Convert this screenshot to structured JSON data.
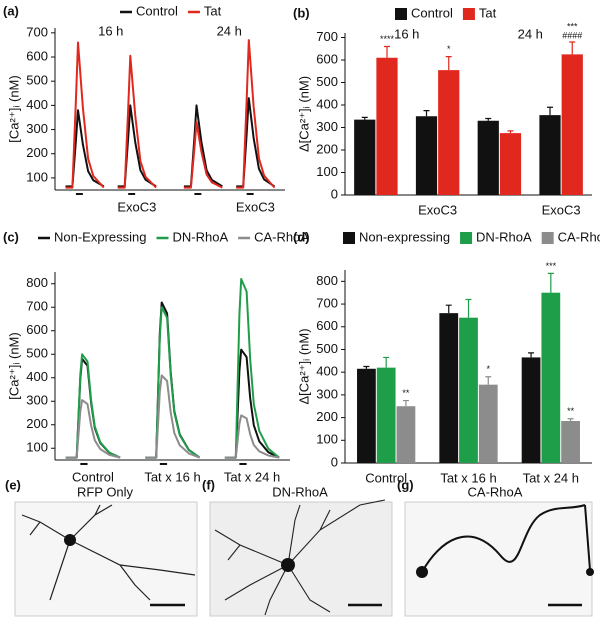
{
  "chart_data": [
    {
      "type": "line",
      "panel": "(a)",
      "ylabel": "[Ca²⁺]ᵢ (nM)",
      "x": [
        0,
        2,
        3,
        3.6,
        5,
        6.5,
        8,
        11,
        13,
        15,
        17,
        18,
        18.6,
        20,
        21.5,
        23,
        26,
        28,
        34,
        36,
        37,
        37.6,
        39,
        40.5,
        42,
        45,
        47,
        49,
        51,
        52,
        52.6,
        54,
        55.5,
        57,
        60
      ],
      "xlim": [
        -3,
        63
      ],
      "series": [
        {
          "name": "Control",
          "color": "#111111",
          "values": [
            65,
            65,
            254,
            380,
            238,
            128,
            90,
            65,
            null,
            65,
            65,
            266,
            400,
            249,
            132,
            92,
            65,
            null,
            65,
            65,
            266,
            400,
            249,
            132,
            92,
            65,
            null,
            65,
            65,
            284,
            430,
            266,
            138,
            94,
            65
          ]
        },
        {
          "name": "Tat",
          "color": "#e0281e",
          "values": [
            60,
            60,
            420,
            660,
            390,
            180,
            108,
            60,
            null,
            60,
            60,
            387,
            605,
            360,
            169,
            104,
            60,
            null,
            60,
            60,
            222,
            330,
            209,
            114,
            82,
            60,
            null,
            60,
            60,
            426,
            670,
            396,
            182,
            109,
            60
          ]
        }
      ],
      "trace_labels": [
        null,
        "ExoC3",
        null,
        "ExoC3"
      ],
      "group_labels": [
        "16 h",
        "24 h"
      ],
      "ylim": [
        50,
        720
      ],
      "yticks": [
        100,
        200,
        300,
        400,
        500,
        600,
        700
      ]
    },
    {
      "type": "bar",
      "panel": "(b)",
      "ylabel": "Δ[Ca²⁺]ᵢ (nM)",
      "categories": [
        null,
        "ExoC3",
        null,
        "ExoC3"
      ],
      "group_labels": [
        "16 h",
        "24 h"
      ],
      "series": [
        {
          "name": "Control",
          "color": "#111111",
          "values": [
            335,
            350,
            330,
            355
          ],
          "errors": [
            10,
            25,
            10,
            35
          ]
        },
        {
          "name": "Tat",
          "color": "#e0281e",
          "values": [
            610,
            555,
            275,
            625
          ],
          "errors": [
            50,
            60,
            10,
            55
          ],
          "sig": [
            "****",
            "*",
            null,
            "***"
          ],
          "sig_extra": [
            null,
            null,
            null,
            "####"
          ]
        }
      ],
      "ylim": [
        0,
        720
      ],
      "yticks": [
        0,
        100,
        200,
        300,
        400,
        500,
        600,
        700
      ]
    },
    {
      "type": "line",
      "panel": "(c)",
      "ylabel": "[Ca²⁺]ᵢ (nM)",
      "x": [
        0,
        3,
        4,
        4.5,
        6,
        7,
        8,
        9.5,
        12,
        15,
        18,
        22,
        25,
        26,
        26.5,
        28,
        29,
        30,
        31.5,
        34,
        37,
        40,
        44,
        47,
        48,
        48.5,
        50,
        51,
        52,
        53.5,
        56,
        59
      ],
      "xlim": [
        -3,
        62
      ],
      "series": [
        {
          "name": "Non-Expressing",
          "color": "#111111",
          "values": [
            60,
            60,
            396,
            480,
            451,
            291,
            186,
            123,
            81,
            60,
            null,
            60,
            60,
            588,
            720,
            674,
            423,
            258,
            159,
            93,
            60,
            null,
            60,
            60,
            428,
            520,
            488,
            313,
            198,
            129,
            83,
            60
          ]
        },
        {
          "name": "DN-RhoA",
          "color": "#1f9e4a",
          "values": [
            60,
            60,
            412,
            500,
            469,
            302,
            192,
            126,
            82,
            60,
            null,
            60,
            60,
            572,
            700,
            655,
            412,
            252,
            156,
            92,
            60,
            null,
            60,
            60,
            668,
            820,
            767,
            478,
            288,
            174,
            98,
            60
          ]
        },
        {
          "name": "CA-RhoA",
          "color": "#8c8c8c",
          "values": [
            60,
            60,
            256,
            305,
            288,
            195,
            134,
            97,
            72,
            60,
            null,
            60,
            60,
            340,
            410,
            386,
            253,
            165,
            113,
            78,
            60,
            null,
            60,
            60,
            204,
            240,
            227,
            159,
            114,
            87,
            69,
            60
          ]
        }
      ],
      "trace_labels": [
        "Control",
        "Tat x 16 h",
        "Tat x 24 h"
      ],
      "ylim": [
        50,
        850
      ],
      "yticks": [
        100,
        200,
        300,
        400,
        500,
        600,
        700,
        800
      ]
    },
    {
      "type": "bar",
      "panel": "(d)",
      "ylabel": "Δ[Ca²⁺]ᵢ (nM)",
      "categories": [
        "Control",
        "Tat x 16 h",
        "Tat x 24 h"
      ],
      "series": [
        {
          "name": "Non-expressing",
          "color": "#111111",
          "values": [
            415,
            660,
            465
          ],
          "errors": [
            10,
            35,
            20
          ]
        },
        {
          "name": "DN-RhoA",
          "color": "#1f9e4a",
          "values": [
            420,
            640,
            750
          ],
          "errors": [
            45,
            80,
            85
          ],
          "sig": [
            null,
            null,
            "***"
          ]
        },
        {
          "name": "CA-RhoA",
          "color": "#8c8c8c",
          "values": [
            250,
            345,
            185
          ],
          "errors": [
            25,
            35,
            10
          ],
          "sig": [
            "**",
            "*",
            "**"
          ]
        }
      ],
      "ylim": [
        0,
        850
      ],
      "yticks": [
        0,
        100,
        200,
        300,
        400,
        500,
        600,
        700,
        800
      ]
    }
  ],
  "images": [
    {
      "panel": "(e)",
      "title": "RFP Only"
    },
    {
      "panel": "(f)",
      "title": "DN-RhoA"
    },
    {
      "panel": "(g)",
      "title": "CA-RhoA"
    }
  ]
}
